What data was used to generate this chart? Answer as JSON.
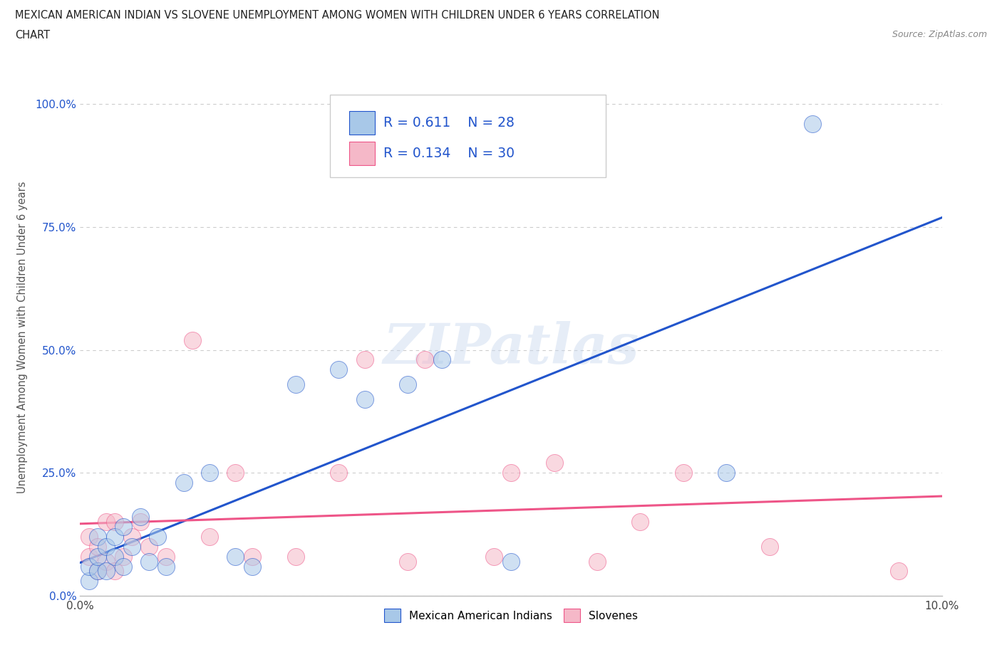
{
  "title_line1": "MEXICAN AMERICAN INDIAN VS SLOVENE UNEMPLOYMENT AMONG WOMEN WITH CHILDREN UNDER 6 YEARS CORRELATION",
  "title_line2": "CHART",
  "source_text": "Source: ZipAtlas.com",
  "ylabel": "Unemployment Among Women with Children Under 6 years",
  "xlim": [
    0.0,
    0.1
  ],
  "ylim": [
    0.0,
    1.05
  ],
  "yticks": [
    0.0,
    0.25,
    0.5,
    0.75,
    1.0
  ],
  "ytick_labels": [
    "0.0%",
    "25.0%",
    "50.0%",
    "75.0%",
    "100.0%"
  ],
  "xticks": [
    0.0,
    0.01,
    0.02,
    0.03,
    0.04,
    0.05,
    0.06,
    0.07,
    0.08,
    0.09,
    0.1
  ],
  "xtick_labels": [
    "0.0%",
    "",
    "",
    "",
    "",
    "",
    "",
    "",
    "",
    "",
    "10.0%"
  ],
  "blue_scatter_x": [
    0.001,
    0.001,
    0.002,
    0.002,
    0.002,
    0.003,
    0.003,
    0.004,
    0.004,
    0.005,
    0.005,
    0.006,
    0.007,
    0.008,
    0.009,
    0.01,
    0.012,
    0.015,
    0.018,
    0.02,
    0.025,
    0.03,
    0.033,
    0.038,
    0.042,
    0.05,
    0.075,
    0.085
  ],
  "blue_scatter_y": [
    0.03,
    0.06,
    0.05,
    0.08,
    0.12,
    0.05,
    0.1,
    0.12,
    0.08,
    0.06,
    0.14,
    0.1,
    0.16,
    0.07,
    0.12,
    0.06,
    0.23,
    0.25,
    0.08,
    0.06,
    0.43,
    0.46,
    0.4,
    0.43,
    0.48,
    0.07,
    0.25,
    0.96
  ],
  "pink_scatter_x": [
    0.001,
    0.001,
    0.002,
    0.002,
    0.003,
    0.003,
    0.004,
    0.004,
    0.005,
    0.006,
    0.007,
    0.008,
    0.01,
    0.013,
    0.015,
    0.018,
    0.02,
    0.025,
    0.03,
    0.033,
    0.038,
    0.04,
    0.048,
    0.05,
    0.055,
    0.06,
    0.065,
    0.07,
    0.08,
    0.095
  ],
  "pink_scatter_y": [
    0.08,
    0.12,
    0.05,
    0.1,
    0.07,
    0.15,
    0.05,
    0.15,
    0.08,
    0.12,
    0.15,
    0.1,
    0.08,
    0.52,
    0.12,
    0.25,
    0.08,
    0.08,
    0.25,
    0.48,
    0.07,
    0.48,
    0.08,
    0.25,
    0.27,
    0.07,
    0.15,
    0.25,
    0.1,
    0.05
  ],
  "blue_R": 0.611,
  "blue_N": 28,
  "pink_R": 0.134,
  "pink_N": 30,
  "blue_color": "#A8C8E8",
  "pink_color": "#F5B8C8",
  "blue_line_color": "#2255CC",
  "pink_line_color": "#EE5588",
  "scatter_alpha": 0.55,
  "scatter_size": 300,
  "watermark_text": "ZIPatlas",
  "background_color": "#FFFFFF",
  "grid_color": "#CCCCCC"
}
